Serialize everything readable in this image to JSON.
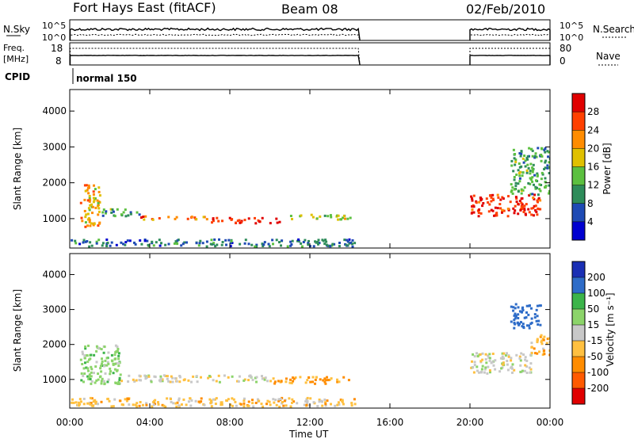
{
  "header": {
    "station": "Fort Hays East (fitACF)",
    "beam": "Beam 08",
    "date": "02/Feb/2010"
  },
  "noise_panel": {
    "left_label": "N.Sky",
    "right_label": "N.Search",
    "left_ticks": [
      "10^5",
      "10^0"
    ],
    "right_ticks": [
      "10^5",
      "10^0"
    ]
  },
  "freq_panel": {
    "left_label_1": "Freq.",
    "left_label_2": "[MHz]",
    "right_label": "Nave",
    "left_ticks": [
      "18",
      "8"
    ],
    "right_ticks": [
      "80",
      "0"
    ]
  },
  "cpid": {
    "label": "CPID",
    "value": "normal 150"
  },
  "x_axis": {
    "label": "Time UT",
    "ticks": [
      "00:00",
      "04:00",
      "08:00",
      "12:00",
      "16:00",
      "20:00",
      "00:00"
    ],
    "range_hours": [
      0,
      24
    ]
  },
  "chart_data": [
    {
      "type": "heatmap",
      "quantity": "Power",
      "ylabel": "Slant Range [km]",
      "yticks": [
        "1000",
        "2000",
        "3000",
        "4000"
      ],
      "ylim": [
        180,
        4600
      ],
      "colorbar_label": "Power [dB]",
      "colorbar_ticks": [
        "4",
        "8",
        "12",
        "16",
        "20",
        "24",
        "28"
      ],
      "colorbar_colors": [
        "#0000d0",
        "#1e4ab4",
        "#2e8c5a",
        "#5cc040",
        "#e0c000",
        "#ff8c00",
        "#ff4000",
        "#e00000"
      ],
      "data_gaps_hours": [
        [
          14.5,
          20.0
        ]
      ],
      "scatter_regions": [
        {
          "t": [
            0.5,
            1.5
          ],
          "range_km": [
            800,
            2000
          ],
          "value_db": 20
        },
        {
          "t": [
            1.5,
            3.5
          ],
          "range_km": [
            1100,
            1300
          ],
          "value_db": 12
        },
        {
          "t": [
            3.5,
            7.0
          ],
          "range_km": [
            1000,
            1100
          ],
          "value_db": 24
        },
        {
          "t": [
            7.0,
            10.5
          ],
          "range_km": [
            900,
            1050
          ],
          "value_db": 28
        },
        {
          "t": [
            11.0,
            14.0
          ],
          "range_km": [
            1000,
            1150
          ],
          "value_db": 16
        },
        {
          "t": [
            20.0,
            23.5
          ],
          "range_km": [
            1100,
            1700
          ],
          "value_db": 28
        },
        {
          "t": [
            22.0,
            24.0
          ],
          "range_km": [
            1700,
            3000
          ],
          "value_db": 12
        },
        {
          "t": [
            0.0,
            14.4
          ],
          "range_km": [
            250,
            450
          ],
          "value_db": 8
        }
      ]
    },
    {
      "type": "heatmap",
      "quantity": "Velocity",
      "ylabel": "Slant Range [km]",
      "yticks": [
        "1000",
        "2000",
        "3000",
        "4000"
      ],
      "ylim": [
        180,
        4600
      ],
      "colorbar_label": "Velocity [m s⁻¹]",
      "colorbar_ticks": [
        "200",
        "100",
        "50",
        "15",
        "-15",
        "-50",
        "-100",
        "-200"
      ],
      "colorbar_colors": [
        "#1a2fb4",
        "#2e6cc8",
        "#3cb44a",
        "#8cd46a",
        "#c8c8c8",
        "#ffc040",
        "#ff8c00",
        "#ff5a00",
        "#e00000"
      ],
      "data_gaps_hours": [
        [
          14.5,
          20.0
        ]
      ],
      "scatter_regions": [
        {
          "t": [
            0.5,
            2.5
          ],
          "range_km": [
            900,
            2000
          ],
          "value_ms": 30
        },
        {
          "t": [
            2.5,
            10.0
          ],
          "range_km": [
            950,
            1150
          ],
          "value_ms": 0
        },
        {
          "t": [
            10.0,
            14.0
          ],
          "range_km": [
            900,
            1100
          ],
          "value_ms": -60
        },
        {
          "t": [
            20.0,
            23.0
          ],
          "range_km": [
            1200,
            1800
          ],
          "value_ms": 0
        },
        {
          "t": [
            22.0,
            23.5
          ],
          "range_km": [
            2500,
            3200
          ],
          "value_ms": 150
        },
        {
          "t": [
            23.0,
            24.0
          ],
          "range_km": [
            1700,
            2300
          ],
          "value_ms": -40
        },
        {
          "t": [
            0.0,
            14.4
          ],
          "range_km": [
            250,
            500
          ],
          "value_ms": -30
        }
      ]
    }
  ]
}
